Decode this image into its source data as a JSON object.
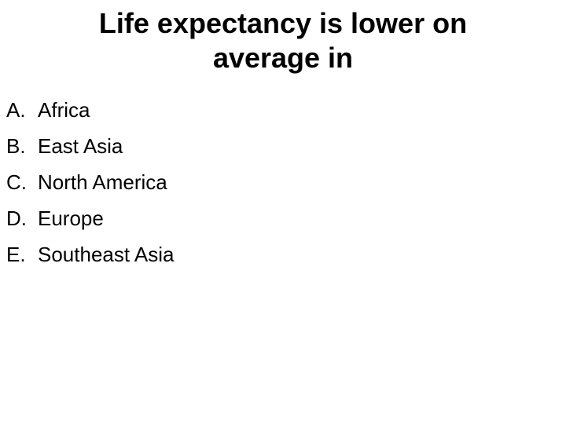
{
  "question": {
    "title_lines": [
      "Life expectancy is lower on",
      "average in"
    ]
  },
  "options": [
    {
      "letter": "A.",
      "text": "Africa"
    },
    {
      "letter": "B.",
      "text": "East Asia"
    },
    {
      "letter": "C.",
      "text": "North America"
    },
    {
      "letter": "D.",
      "text": "Europe"
    },
    {
      "letter": "E.",
      "text": "Southeast Asia"
    }
  ]
}
